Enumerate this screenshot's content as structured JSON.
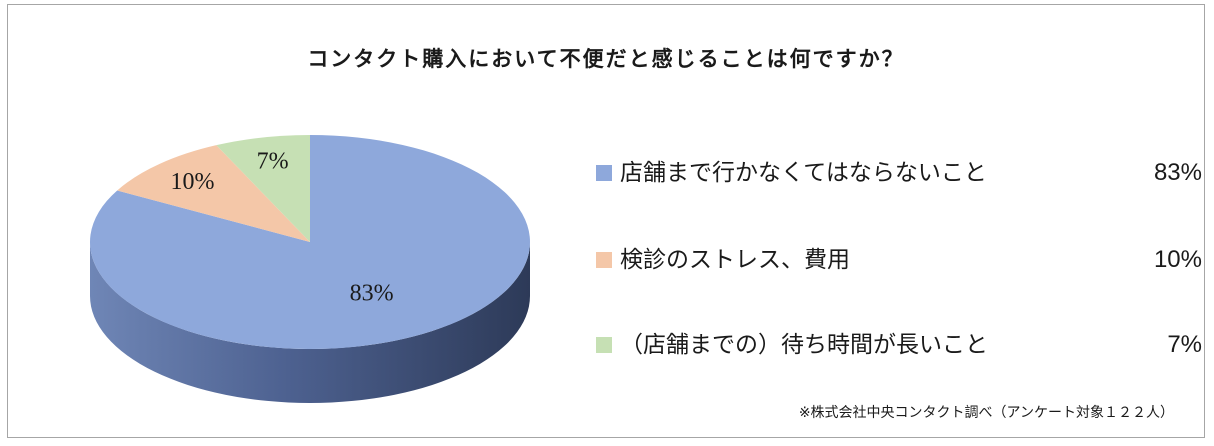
{
  "chart_data": {
    "type": "pie",
    "title": "コンタクト購入において不便だと感じることは何ですか？",
    "categories": [
      "店舗まで行かなくてはならないこと",
      "検診のストレス、費用",
      "（店舗までの）待ち時間が長いこと"
    ],
    "values": [
      83,
      10,
      7
    ],
    "value_labels": [
      "83%",
      "10%",
      "7%"
    ],
    "colors": [
      "#8EA8DB",
      "#F4C7A8",
      "#C6E0B4"
    ],
    "legend_placement": "right",
    "three_d": true
  },
  "footnote": "※株式会社中央コンタクト調べ（アンケート対象１２２人）"
}
